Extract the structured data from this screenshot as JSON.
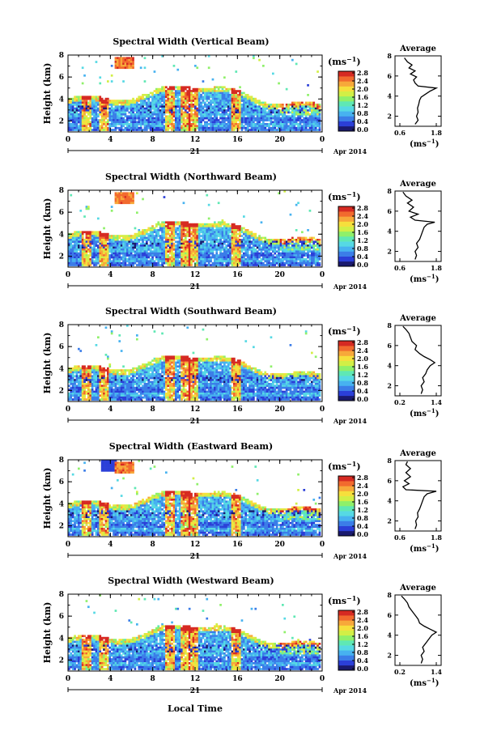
{
  "figure": {
    "x_axis_label": "Local Time",
    "date_day": "21",
    "date_month_year": "Apr 2014",
    "colorbar_unit": "(ms",
    "colorbar_unit_exp": "−1",
    "colorbar_ticks": [
      "0.0",
      "0.4",
      "0.8",
      "1.2",
      "1.6",
      "2.0",
      "2.4",
      "2.8"
    ],
    "profile_title": "Average",
    "profile_unit": "(ms",
    "profile_unit_exp": "−1",
    "colorscale": [
      "#1a1a6e",
      "#2b3fd8",
      "#3b7de8",
      "#47b2f0",
      "#56d9e4",
      "#5fe8b4",
      "#8ff06a",
      "#d2ef46",
      "#f6df3c",
      "#f7a83a",
      "#f26a2e",
      "#d62a22"
    ]
  },
  "chart_data": [
    {
      "type": "heatmap",
      "title": "Spectral Width (Vertical Beam)",
      "ylabel": "Height (km)",
      "xlabel": "Local Time",
      "x_range": [
        0,
        24
      ],
      "y_range": [
        1,
        8
      ],
      "x_ticks": [
        "0",
        "4",
        "8",
        "12",
        "16",
        "20",
        "0"
      ],
      "y_ticks": [
        "2",
        "4",
        "6",
        "8"
      ],
      "colorbar": {
        "unit": "ms^-1",
        "range": [
          0,
          3.0
        ],
        "ticks": [
          0.0,
          0.4,
          0.8,
          1.2,
          1.6,
          2.0,
          2.4,
          2.8
        ]
      },
      "profile": {
        "title": "Average",
        "x_ticks": [
          "0.6",
          "1.8"
        ],
        "x_range": [
          0.6,
          1.8
        ],
        "y_ticks": [
          "2",
          "4",
          "6",
          "8"
        ],
        "points": [
          [
            1.1,
            1.2
          ],
          [
            1.2,
            1.6
          ],
          [
            1.15,
            2.0
          ],
          [
            1.2,
            2.4
          ],
          [
            1.18,
            2.8
          ],
          [
            1.22,
            3.2
          ],
          [
            1.25,
            3.6
          ],
          [
            1.3,
            3.9
          ],
          [
            1.45,
            4.2
          ],
          [
            1.6,
            4.5
          ],
          [
            1.8,
            4.8
          ],
          [
            1.2,
            5.0
          ],
          [
            1.1,
            5.3
          ],
          [
            1.05,
            5.6
          ],
          [
            1.15,
            5.9
          ],
          [
            0.95,
            6.2
          ],
          [
            1.1,
            6.5
          ],
          [
            0.9,
            6.8
          ],
          [
            1.0,
            7.1
          ],
          [
            0.85,
            7.4
          ],
          [
            0.75,
            7.8
          ]
        ]
      }
    },
    {
      "type": "heatmap",
      "title": "Spectral Width (Northward Beam)",
      "ylabel": "Height (km)",
      "xlabel": "Local Time",
      "x_range": [
        0,
        24
      ],
      "y_range": [
        1,
        8
      ],
      "x_ticks": [
        "0",
        "4",
        "8",
        "12",
        "16",
        "20",
        "0"
      ],
      "y_ticks": [
        "2",
        "4",
        "6",
        "8"
      ],
      "colorbar": {
        "unit": "ms^-1",
        "range": [
          0,
          3.0
        ],
        "ticks": [
          0.0,
          0.4,
          0.8,
          1.2,
          1.6,
          2.0,
          2.4,
          2.8
        ]
      },
      "profile": {
        "title": "Average",
        "x_ticks": [
          "0.6",
          "1.8"
        ],
        "x_range": [
          0.6,
          1.8
        ],
        "y_ticks": [
          "2",
          "4",
          "6",
          "8"
        ],
        "points": [
          [
            1.1,
            1.2
          ],
          [
            1.15,
            1.6
          ],
          [
            1.1,
            2.0
          ],
          [
            1.2,
            2.4
          ],
          [
            1.15,
            2.8
          ],
          [
            1.25,
            3.2
          ],
          [
            1.3,
            3.6
          ],
          [
            1.35,
            4.0
          ],
          [
            1.4,
            4.4
          ],
          [
            1.5,
            4.7
          ],
          [
            1.75,
            4.9
          ],
          [
            1.1,
            5.1
          ],
          [
            0.95,
            5.4
          ],
          [
            1.2,
            5.7
          ],
          [
            0.9,
            6.0
          ],
          [
            1.05,
            6.4
          ],
          [
            0.85,
            6.8
          ],
          [
            1.0,
            7.1
          ],
          [
            0.8,
            7.5
          ],
          [
            0.7,
            7.9
          ]
        ]
      }
    },
    {
      "type": "heatmap",
      "title": "Spectral Width (Southward Beam)",
      "ylabel": "Height (km)",
      "xlabel": "Local Time",
      "x_range": [
        0,
        24
      ],
      "y_range": [
        1,
        8
      ],
      "x_ticks": [
        "0",
        "4",
        "8",
        "12",
        "16",
        "20",
        "0"
      ],
      "y_ticks": [
        "2",
        "4",
        "6",
        "8"
      ],
      "colorbar": {
        "unit": "ms^-1",
        "range": [
          0,
          3.0
        ],
        "ticks": [
          0.0,
          0.4,
          0.8,
          1.2,
          1.6,
          2.0,
          2.4,
          2.8
        ]
      },
      "profile": {
        "title": "Average",
        "x_ticks": [
          "0.2",
          "1.4"
        ],
        "x_range": [
          0.2,
          1.4
        ],
        "y_ticks": [
          "2",
          "4",
          "6",
          "8"
        ],
        "points": [
          [
            0.9,
            1.2
          ],
          [
            0.95,
            1.6
          ],
          [
            0.9,
            2.0
          ],
          [
            1.0,
            2.4
          ],
          [
            0.95,
            2.8
          ],
          [
            1.05,
            3.2
          ],
          [
            1.1,
            3.6
          ],
          [
            1.2,
            4.0
          ],
          [
            1.35,
            4.3
          ],
          [
            1.2,
            4.6
          ],
          [
            1.0,
            4.9
          ],
          [
            0.85,
            5.2
          ],
          [
            0.7,
            5.6
          ],
          [
            0.75,
            6.0
          ],
          [
            0.6,
            6.4
          ],
          [
            0.55,
            6.8
          ],
          [
            0.5,
            7.2
          ],
          [
            0.4,
            7.6
          ],
          [
            0.3,
            7.9
          ]
        ]
      }
    },
    {
      "type": "heatmap",
      "title": "Spectral Width (Eastward Beam)",
      "ylabel": "Height (km)",
      "xlabel": "Local Time",
      "x_range": [
        0,
        24
      ],
      "y_range": [
        1,
        8
      ],
      "x_ticks": [
        "0",
        "4",
        "8",
        "12",
        "16",
        "20",
        "0"
      ],
      "y_ticks": [
        "2",
        "4",
        "6",
        "8"
      ],
      "colorbar": {
        "unit": "ms^-1",
        "range": [
          0,
          3.0
        ],
        "ticks": [
          0.0,
          0.4,
          0.8,
          1.2,
          1.6,
          2.0,
          2.4,
          2.8
        ]
      },
      "profile": {
        "title": "Average",
        "x_ticks": [
          "0.6",
          "1.8"
        ],
        "x_range": [
          0.6,
          1.8
        ],
        "y_ticks": [
          "2",
          "4",
          "6",
          "8"
        ],
        "points": [
          [
            1.1,
            1.2
          ],
          [
            1.15,
            1.6
          ],
          [
            1.12,
            2.0
          ],
          [
            1.2,
            2.4
          ],
          [
            1.18,
            2.8
          ],
          [
            1.25,
            3.2
          ],
          [
            1.3,
            3.6
          ],
          [
            1.35,
            4.0
          ],
          [
            1.4,
            4.4
          ],
          [
            1.5,
            4.7
          ],
          [
            1.8,
            4.95
          ],
          [
            0.8,
            5.1
          ],
          [
            0.7,
            5.4
          ],
          [
            0.9,
            5.7
          ],
          [
            0.75,
            6.0
          ],
          [
            0.95,
            6.4
          ],
          [
            0.8,
            6.8
          ],
          [
            0.95,
            7.2
          ],
          [
            0.8,
            7.6
          ],
          [
            0.85,
            7.9
          ]
        ]
      }
    },
    {
      "type": "heatmap",
      "title": "Spectral Width (Westward Beam)",
      "ylabel": "Height (km)",
      "xlabel": "Local Time",
      "x_range": [
        0,
        24
      ],
      "y_range": [
        1,
        8
      ],
      "x_ticks": [
        "0",
        "4",
        "8",
        "12",
        "16",
        "20",
        "0"
      ],
      "y_ticks": [
        "2",
        "4",
        "6",
        "8"
      ],
      "colorbar": {
        "unit": "ms^-1",
        "range": [
          0,
          3.0
        ],
        "ticks": [
          0.0,
          0.4,
          0.8,
          1.2,
          1.6,
          2.0,
          2.4,
          2.8
        ]
      },
      "profile": {
        "title": "Average",
        "x_ticks": [
          "0.2",
          "1.4"
        ],
        "x_range": [
          0.2,
          1.4
        ],
        "y_ticks": [
          "2",
          "4",
          "6",
          "8"
        ],
        "points": [
          [
            0.9,
            1.2
          ],
          [
            0.95,
            1.6
          ],
          [
            0.9,
            2.0
          ],
          [
            1.0,
            2.4
          ],
          [
            0.95,
            2.8
          ],
          [
            1.05,
            3.2
          ],
          [
            1.15,
            3.6
          ],
          [
            1.25,
            4.0
          ],
          [
            1.4,
            4.3
          ],
          [
            1.2,
            4.6
          ],
          [
            1.0,
            4.9
          ],
          [
            0.85,
            5.2
          ],
          [
            0.8,
            5.6
          ],
          [
            0.7,
            6.0
          ],
          [
            0.6,
            6.4
          ],
          [
            0.5,
            6.8
          ],
          [
            0.45,
            7.2
          ],
          [
            0.35,
            7.6
          ],
          [
            0.25,
            7.9
          ]
        ]
      }
    }
  ]
}
